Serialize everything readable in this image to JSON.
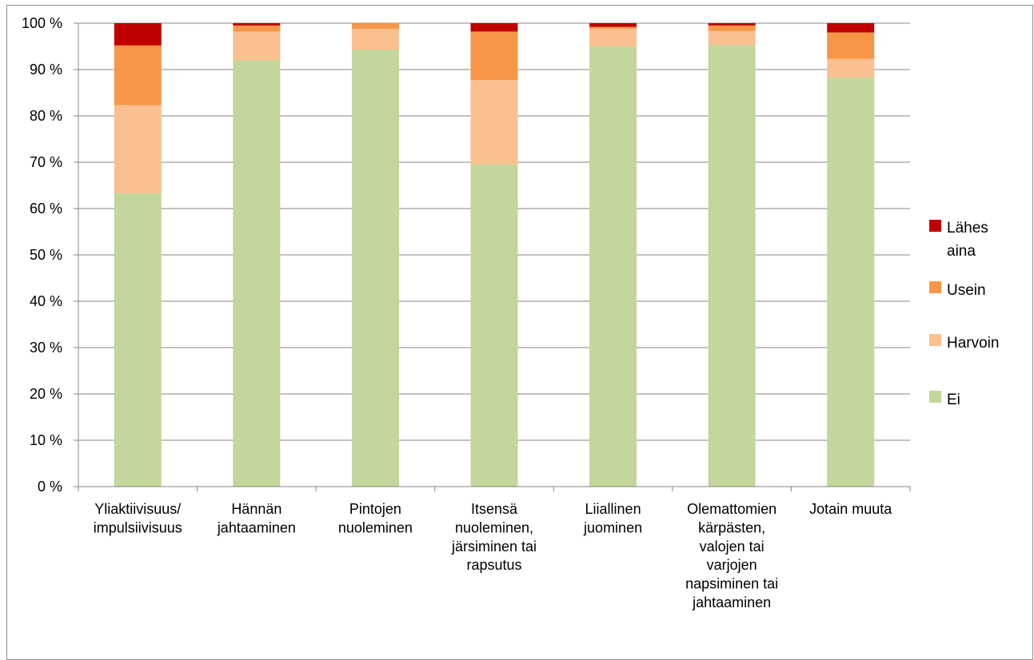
{
  "chart_data": {
    "type": "bar",
    "stacked": true,
    "percent": true,
    "ylim": [
      0,
      100
    ],
    "yticks": [
      "0 %",
      "10 %",
      "20 %",
      "30 %",
      "40 %",
      "50 %",
      "60 %",
      "70 %",
      "80 %",
      "90 %",
      "100 %"
    ],
    "grid": true,
    "legend_position": "right",
    "categories": [
      [
        "Yliaktiivisuus/",
        "impulsiivisuus"
      ],
      [
        "Hännän",
        "jahtaaminen"
      ],
      [
        "Pintojen",
        "nuoleminen"
      ],
      [
        "Itsensä",
        "nuoleminen,",
        "järsiminen tai",
        "rapsutus"
      ],
      [
        "Liiallinen",
        "juominen"
      ],
      [
        "Olemattomien",
        "kärpästen,",
        "valojen tai",
        "varjojen",
        "napsiminen tai",
        "jahtaaminen"
      ],
      [
        "Jotain muuta"
      ]
    ],
    "series": [
      {
        "name": "Ei",
        "color": "#c3d69b",
        "values": [
          63.3,
          92.0,
          94.3,
          69.5,
          95.0,
          95.3,
          88.3
        ]
      },
      {
        "name": "Harvoin",
        "color": "#fac090",
        "values": [
          19.0,
          6.2,
          4.5,
          18.2,
          3.8,
          3.0,
          4.0
        ]
      },
      {
        "name": "Usein",
        "color": "#f79646",
        "values": [
          12.9,
          1.3,
          1.2,
          10.5,
          0.4,
          1.2,
          5.7
        ]
      },
      {
        "name": "Lähes aina",
        "color": "#c00000",
        "values": [
          4.8,
          0.5,
          0.0,
          1.8,
          0.8,
          0.5,
          2.0
        ]
      }
    ],
    "legend": [
      {
        "lines": [
          "Lähes",
          "aina"
        ],
        "color": "#c00000"
      },
      {
        "lines": [
          "Usein"
        ],
        "color": "#f79646"
      },
      {
        "lines": [
          "Harvoin"
        ],
        "color": "#fac090"
      },
      {
        "lines": [
          "Ei"
        ],
        "color": "#c3d69b"
      }
    ]
  }
}
